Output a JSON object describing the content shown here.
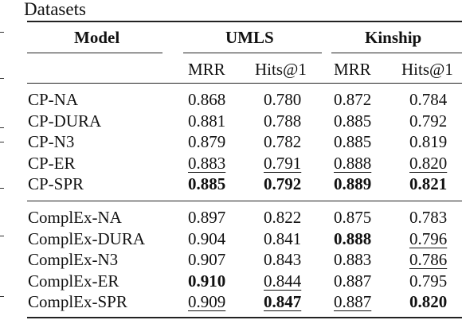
{
  "caption": "Datasets",
  "table": {
    "header": {
      "model": "Model",
      "group1": "UMLS",
      "group2": "Kinship"
    },
    "subheaders": [
      "MRR",
      "Hits@1",
      "MRR",
      "Hits@1"
    ],
    "groups": [
      {
        "rows": [
          {
            "model": "CP-NA",
            "cells": [
              {
                "v": "0.868"
              },
              {
                "v": "0.780"
              },
              {
                "v": "0.872"
              },
              {
                "v": "0.784"
              }
            ]
          },
          {
            "model": "CP-DURA",
            "cells": [
              {
                "v": "0.881"
              },
              {
                "v": "0.788"
              },
              {
                "v": "0.885"
              },
              {
                "v": "0.792"
              }
            ]
          },
          {
            "model": "CP-N3",
            "cells": [
              {
                "v": "0.879"
              },
              {
                "v": "0.782"
              },
              {
                "v": "0.885"
              },
              {
                "v": "0.819"
              }
            ]
          },
          {
            "model": "CP-ER",
            "cells": [
              {
                "v": "0.883",
                "u": true
              },
              {
                "v": "0.791",
                "u": true
              },
              {
                "v": "0.888",
                "u": true
              },
              {
                "v": "0.820",
                "u": true
              }
            ]
          },
          {
            "model": "CP-SPR",
            "cells": [
              {
                "v": "0.885",
                "b": true
              },
              {
                "v": "0.792",
                "b": true
              },
              {
                "v": "0.889",
                "b": true
              },
              {
                "v": "0.821",
                "b": true
              }
            ]
          }
        ]
      },
      {
        "rows": [
          {
            "model": "ComplEx-NA",
            "cells": [
              {
                "v": "0.897"
              },
              {
                "v": "0.822"
              },
              {
                "v": "0.875"
              },
              {
                "v": "0.783"
              }
            ]
          },
          {
            "model": "ComplEx-DURA",
            "cells": [
              {
                "v": "0.904"
              },
              {
                "v": "0.841"
              },
              {
                "v": "0.888",
                "b": true
              },
              {
                "v": "0.796",
                "u": true
              }
            ]
          },
          {
            "model": "ComplEx-N3",
            "cells": [
              {
                "v": "0.907"
              },
              {
                "v": "0.843"
              },
              {
                "v": "0.883"
              },
              {
                "v": "0.786",
                "u": true
              }
            ]
          },
          {
            "model": "ComplEx-ER",
            "cells": [
              {
                "v": "0.910",
                "b": true
              },
              {
                "v": "0.844",
                "u": true
              },
              {
                "v": "0.887"
              },
              {
                "v": "0.795"
              }
            ]
          },
          {
            "model": "ComplEx-SPR",
            "cells": [
              {
                "v": "0.909",
                "u": true
              },
              {
                "v": "0.847",
                "b": true,
                "u": true
              },
              {
                "v": "0.887",
                "u": true
              },
              {
                "v": "0.820",
                "b": true
              }
            ]
          }
        ]
      }
    ]
  }
}
